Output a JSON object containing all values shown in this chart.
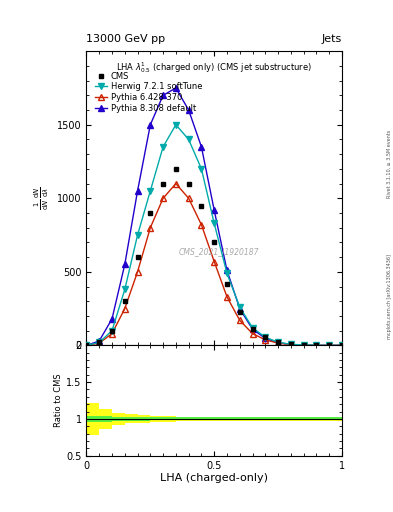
{
  "title_top": "13000 GeV pp",
  "title_right": "Jets",
  "plot_title": "LHA $\\lambda^1_{0.5}$ (charged only) (CMS jet substructure)",
  "watermark": "CMS_2021_I1920187",
  "xlabel": "LHA (charged-only)",
  "ylabel_ratio": "Ratio to CMS",
  "right_label": "Rivet 3.1.10, ≥ 3.5M events",
  "right_label2": "mcplots.cern.ch [arXiv:1306.3436]",
  "cms_data_x": [
    0.0,
    0.05,
    0.1,
    0.15,
    0.2,
    0.25,
    0.3,
    0.35,
    0.4,
    0.45,
    0.5,
    0.55,
    0.6,
    0.65,
    0.7,
    0.75,
    0.8,
    0.85,
    0.9,
    0.95,
    1.0
  ],
  "cms_data_y": [
    0,
    20,
    100,
    300,
    600,
    900,
    1100,
    1200,
    1100,
    950,
    700,
    420,
    230,
    110,
    55,
    25,
    8,
    3,
    1,
    0,
    0
  ],
  "herwig_x": [
    0.0,
    0.05,
    0.1,
    0.15,
    0.2,
    0.25,
    0.3,
    0.35,
    0.4,
    0.45,
    0.5,
    0.55,
    0.6,
    0.65,
    0.7,
    0.75,
    0.8,
    0.85,
    0.9,
    0.95,
    1.0
  ],
  "herwig_y": [
    0,
    20,
    100,
    380,
    750,
    1050,
    1350,
    1500,
    1400,
    1200,
    830,
    490,
    260,
    120,
    55,
    22,
    7,
    3,
    1,
    0,
    0
  ],
  "pythia6_x": [
    0.0,
    0.05,
    0.1,
    0.15,
    0.2,
    0.25,
    0.3,
    0.35,
    0.4,
    0.45,
    0.5,
    0.55,
    0.6,
    0.65,
    0.7,
    0.75,
    0.8,
    0.85,
    0.9,
    0.95,
    1.0
  ],
  "pythia6_y": [
    0,
    15,
    80,
    250,
    500,
    800,
    1000,
    1100,
    1000,
    820,
    570,
    330,
    170,
    80,
    38,
    15,
    5,
    2,
    0,
    0,
    0
  ],
  "pythia8_x": [
    0.0,
    0.05,
    0.1,
    0.15,
    0.2,
    0.25,
    0.3,
    0.35,
    0.4,
    0.45,
    0.5,
    0.55,
    0.6,
    0.65,
    0.7,
    0.75,
    0.8,
    0.85,
    0.9,
    0.95,
    1.0
  ],
  "pythia8_y": [
    0,
    30,
    180,
    550,
    1050,
    1500,
    1700,
    1750,
    1600,
    1350,
    920,
    510,
    250,
    110,
    48,
    18,
    6,
    2,
    0,
    0,
    0
  ],
  "cms_color": "#000000",
  "herwig_color": "#00aaaa",
  "pythia6_color": "#cc2200",
  "pythia8_color": "#2200cc",
  "ylim_main": [
    0,
    2000
  ],
  "ylim_ratio": [
    0.5,
    2.0
  ],
  "xlim": [
    0.0,
    1.0
  ],
  "ratio_green_err": [
    0.04,
    0.04,
    0.03,
    0.03,
    0.03,
    0.02,
    0.02,
    0.02,
    0.02,
    0.02,
    0.02,
    0.02,
    0.02,
    0.02,
    0.02,
    0.02,
    0.02,
    0.02,
    0.02,
    0.02
  ],
  "ratio_yellow_err": [
    0.22,
    0.14,
    0.08,
    0.06,
    0.05,
    0.04,
    0.04,
    0.03,
    0.03,
    0.03,
    0.03,
    0.03,
    0.03,
    0.03,
    0.03,
    0.03,
    0.03,
    0.03,
    0.03,
    0.03
  ]
}
